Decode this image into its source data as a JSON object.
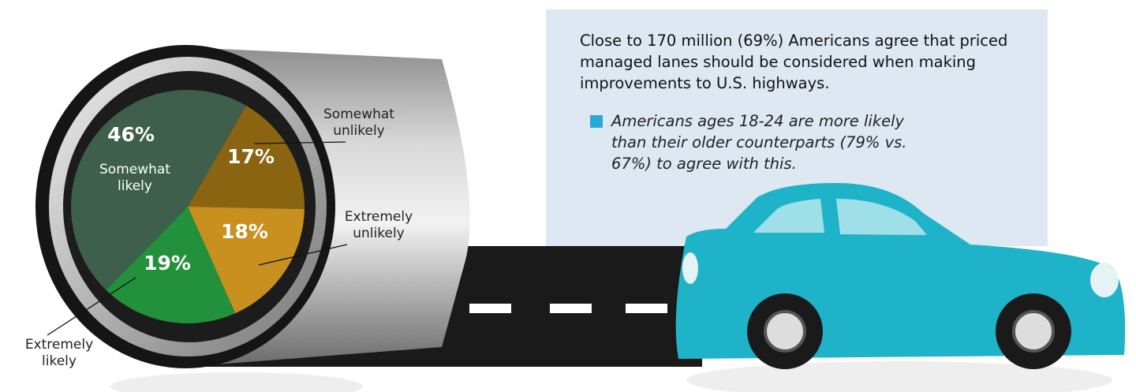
{
  "chart_data": {
    "type": "pie",
    "categories": [
      "Somewhat unlikely",
      "Extremely unlikely",
      "Extremely likely",
      "Somewhat likely"
    ],
    "values": [
      17,
      18,
      19,
      46
    ],
    "value_labels": [
      "17%",
      "18%",
      "19%",
      "46%"
    ],
    "colors": [
      "#8a6410",
      "#c8901f",
      "#23913b",
      "#3e5f4b"
    ],
    "annotations": [
      "Close to 170 million (69%) Americans agree that priced managed lanes should be considered when making improvements to U.S. highways.",
      "Americans ages 18-24 are more likely than their older counterparts (79% vs. 67%) to agree with this."
    ]
  }
}
